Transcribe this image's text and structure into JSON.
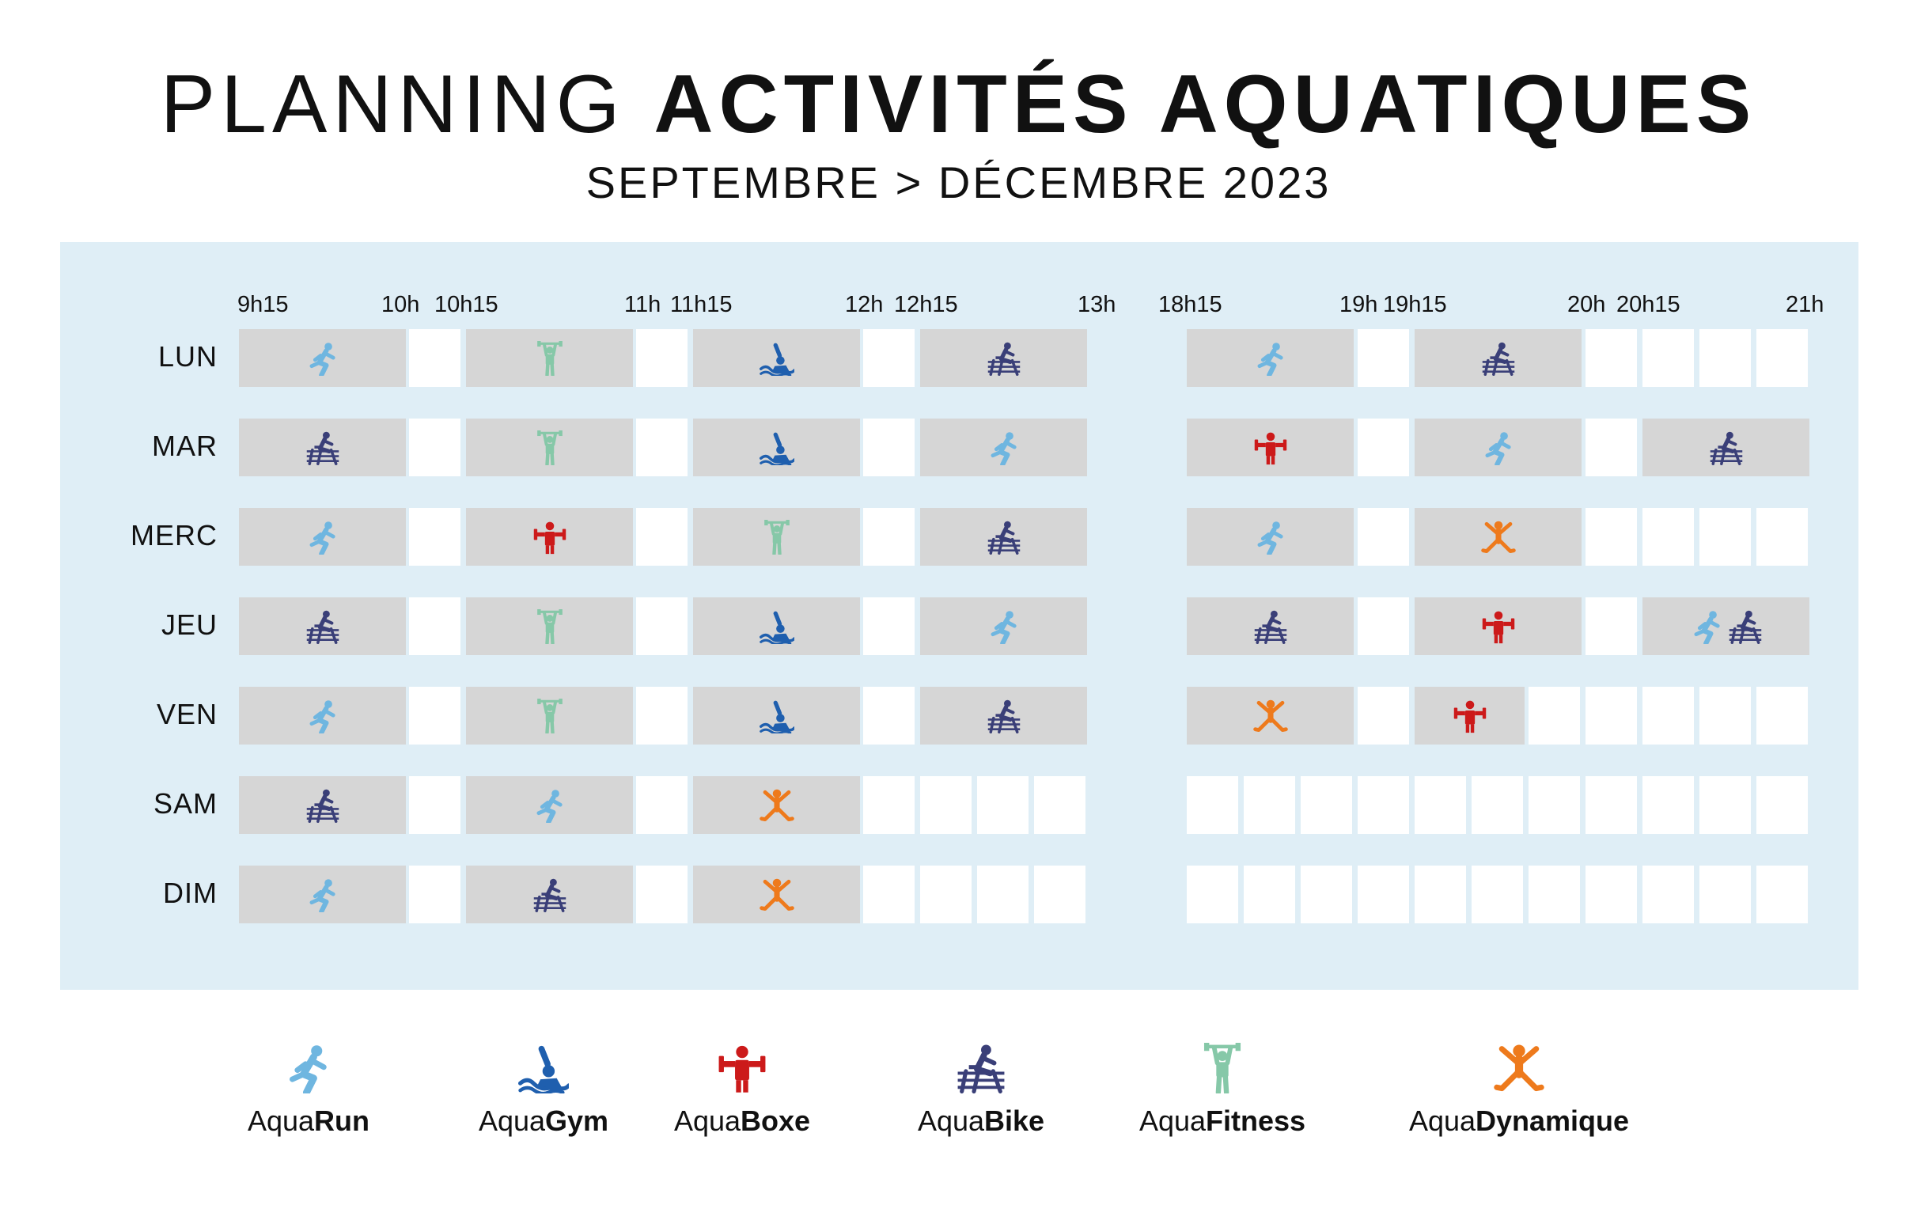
{
  "header": {
    "title_light": "PLANNING",
    "title_bold": "ACTIVITÉS AQUATIQUES",
    "subtitle": "SEPTEMBRE > DÉCEMBRE 2023"
  },
  "time_labels": [
    "9h15",
    "10h",
    "10h15",
    "11h",
    "11h15",
    "12h",
    "12h15",
    "13h",
    "18h15",
    "19h",
    "19h15",
    "20h",
    "20h15",
    "21h"
  ],
  "days": [
    {
      "label": "LUN",
      "activities": [
        "run",
        "fitness",
        "gym",
        "bike",
        "run",
        "bike"
      ]
    },
    {
      "label": "MAR",
      "activities": [
        "bike",
        "fitness",
        "gym",
        "run",
        "boxe",
        "run",
        "bike"
      ]
    },
    {
      "label": "MERC",
      "activities": [
        "run",
        "boxe",
        "fitness",
        "bike",
        "run",
        "dynamique"
      ]
    },
    {
      "label": "JEU",
      "activities": [
        "bike",
        "fitness",
        "gym",
        "run",
        "bike",
        "boxe",
        "run+bike"
      ]
    },
    {
      "label": "VEN",
      "activities": [
        "run",
        "fitness",
        "gym",
        "bike",
        "dynamique",
        "boxe"
      ]
    },
    {
      "label": "SAM",
      "activities": [
        "bike",
        "run",
        "dynamique"
      ]
    },
    {
      "label": "DIM",
      "activities": [
        "run",
        "bike",
        "dynamique"
      ]
    }
  ],
  "legend": [
    {
      "key": "run",
      "prefix": "Aqua",
      "name": "Run",
      "icon": "running-person-icon",
      "color": "#6fb6e0"
    },
    {
      "key": "gym",
      "prefix": "Aqua",
      "name": "Gym",
      "icon": "swimmer-icon",
      "color": "#1f5fae"
    },
    {
      "key": "boxe",
      "prefix": "Aqua",
      "name": "Boxe",
      "icon": "dumbbell-person-icon",
      "color": "#cc1a1a"
    },
    {
      "key": "bike",
      "prefix": "Aqua",
      "name": "Bike",
      "icon": "bike-rider-icon",
      "color": "#3a3f78"
    },
    {
      "key": "fitness",
      "prefix": "Aqua",
      "name": "Fitness",
      "icon": "weightlifter-icon",
      "color": "#86c8a8"
    },
    {
      "key": "dynamique",
      "prefix": "Aqua",
      "name": "Dynamique",
      "icon": "jumping-person-icon",
      "color": "#ee7a1c"
    }
  ]
}
